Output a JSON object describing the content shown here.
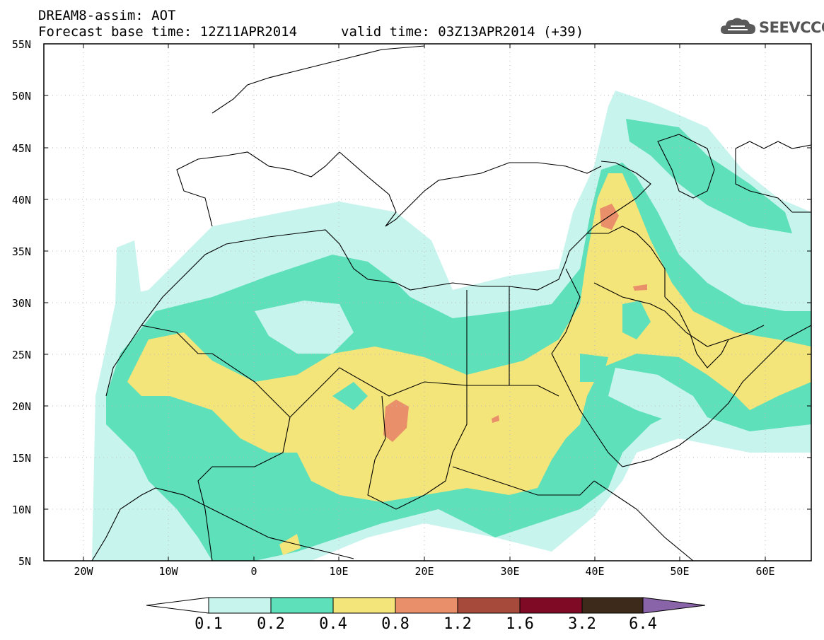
{
  "title": {
    "line1": "DREAM8-assim: AOT",
    "line2": "Forecast base time: 12Z11APR2014",
    "valid": "valid time: 03Z13APR2014 (+39)"
  },
  "logo": {
    "text": "SEEVCCC",
    "icon": "cloud-logo-icon"
  },
  "axes": {
    "lat_labels": [
      "55N",
      "50N",
      "45N",
      "40N",
      "35N",
      "30N",
      "25N",
      "20N",
      "15N",
      "10N",
      "5N"
    ],
    "lon_labels": [
      "20W",
      "10W",
      "0",
      "10E",
      "20E",
      "30E",
      "40E",
      "50E",
      "60E"
    ]
  },
  "legend": {
    "labels": [
      "0.1",
      "0.2",
      "0.4",
      "0.8",
      "1.2",
      "1.6",
      "3.2",
      "6.4"
    ],
    "colors": [
      "#ffffff",
      "#c8f4ee",
      "#5ee0ba",
      "#f4e57a",
      "#e9906a",
      "#a64a3c",
      "#7e0a26",
      "#3d2a1a",
      "#8a64a8"
    ]
  }
}
